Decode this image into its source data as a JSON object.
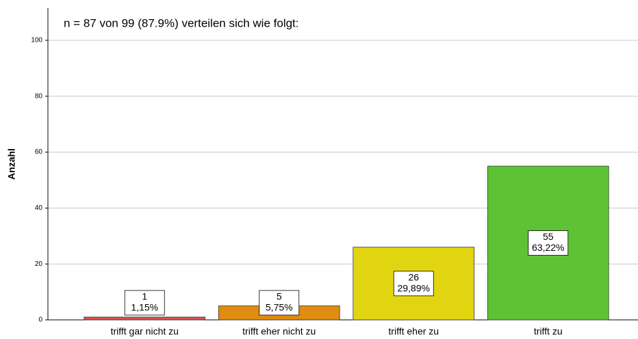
{
  "chart_data": {
    "type": "bar",
    "annotation": "n = 87 von 99 (87.9%) verteilen sich wie folgt:",
    "y_label": "Anzahl",
    "categories": [
      "trifft gar nicht zu",
      "trifft eher nicht zu",
      "trifft eher zu",
      "trifft zu"
    ],
    "values": [
      1,
      5,
      26,
      55
    ],
    "colors": [
      "#e05050",
      "#e08c10",
      "#e1d512",
      "#5ec235"
    ],
    "percentages": [
      1.15,
      5.75,
      29.89,
      63.22
    ],
    "percentage_labels": [
      "1,15%",
      "5,75%",
      "29,89%",
      "63,22%"
    ],
    "ylim": [
      0,
      100
    ],
    "yticks": [
      0,
      20,
      40,
      60,
      80,
      100
    ],
    "grid": true
  }
}
